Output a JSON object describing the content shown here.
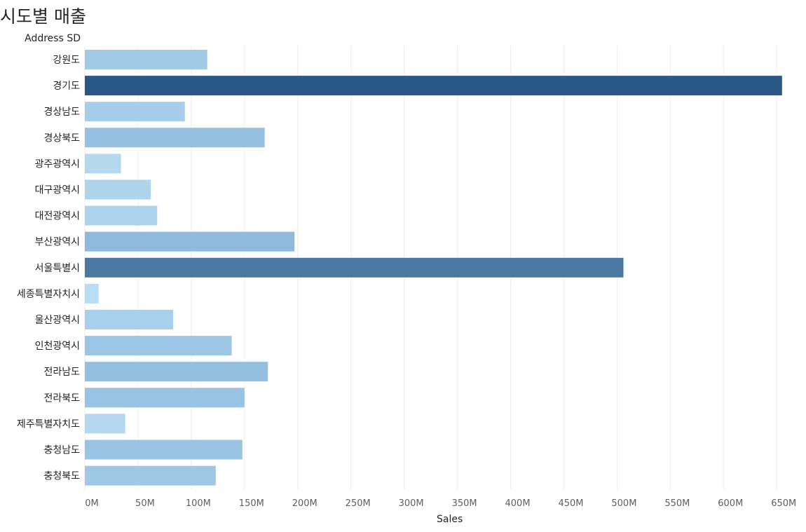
{
  "chart_data": {
    "type": "bar",
    "orientation": "horizontal",
    "title": "시도별 매출",
    "ylabel": "Address SD",
    "xlabel": "Sales",
    "categories": [
      "강원도",
      "경기도",
      "경상남도",
      "경상북도",
      "광주광역시",
      "대구광역시",
      "대전광역시",
      "부산광역시",
      "서울특별시",
      "세종특별자치시",
      "울산광역시",
      "인천광역시",
      "전라남도",
      "전라북도",
      "제주특별자치도",
      "충청남도",
      "충청북도"
    ],
    "values": [
      115,
      655,
      94,
      169,
      34,
      62,
      68,
      197,
      506,
      13,
      83,
      138,
      172,
      150,
      38,
      148,
      123
    ],
    "value_unit": "M",
    "xlim": [
      0,
      665
    ],
    "x_ticks": [
      "0M",
      "50M",
      "100M",
      "150M",
      "200M",
      "250M",
      "300M",
      "350M",
      "400M",
      "450M",
      "500M",
      "550M",
      "600M",
      "650M"
    ],
    "grid": true,
    "color_scale": {
      "low": "#b9ddf2",
      "mid": "#8cb9db",
      "high": "#2a5886"
    }
  }
}
